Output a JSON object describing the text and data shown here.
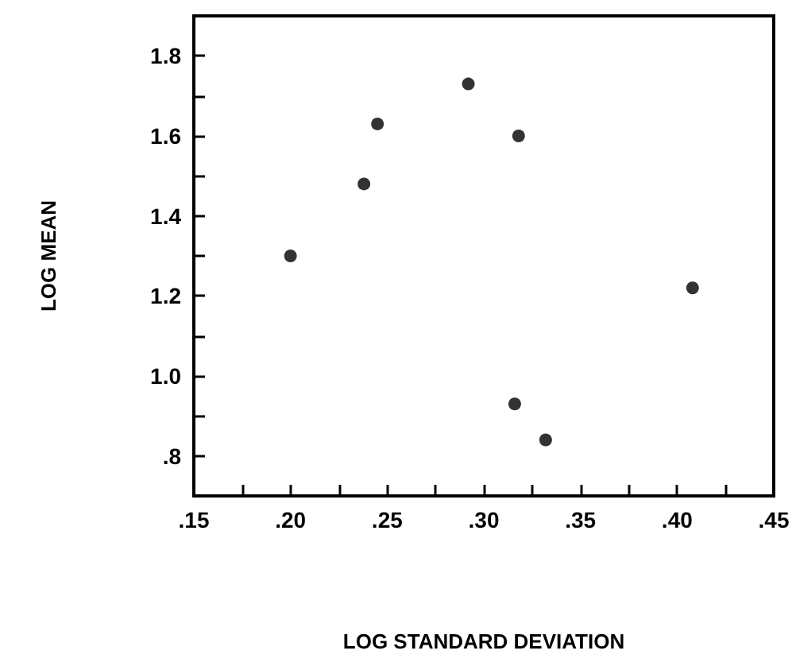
{
  "chart_data": {
    "type": "scatter",
    "xlabel": "LOG STANDARD DEVIATION",
    "ylabel": "LOG MEAN",
    "x": [
      0.2,
      0.238,
      0.245,
      0.292,
      0.318,
      0.316,
      0.332,
      0.408
    ],
    "values": [
      1.3,
      1.48,
      1.63,
      1.73,
      1.6,
      0.93,
      0.84,
      1.22
    ],
    "color": "#000000",
    "marker": "circle",
    "grid": false,
    "xlim": [
      0.15,
      0.45
    ],
    "ylim": [
      0.7,
      1.9
    ],
    "xticks": [
      {
        "value": 0.15,
        "label": ".15"
      },
      {
        "value": 0.175,
        "label": null
      },
      {
        "value": 0.2,
        "label": ".20"
      },
      {
        "value": 0.225,
        "label": null
      },
      {
        "value": 0.25,
        "label": ".25"
      },
      {
        "value": 0.275,
        "label": null
      },
      {
        "value": 0.3,
        "label": ".30"
      },
      {
        "value": 0.325,
        "label": null
      },
      {
        "value": 0.35,
        "label": ".35"
      },
      {
        "value": 0.375,
        "label": null
      },
      {
        "value": 0.4,
        "label": ".40"
      },
      {
        "value": 0.425,
        "label": null
      },
      {
        "value": 0.45,
        "label": ".45"
      }
    ],
    "yticks": [
      {
        "value": 0.8,
        "label": ".8"
      },
      {
        "value": 0.9,
        "label": null
      },
      {
        "value": 1.0,
        "label": "1.0"
      },
      {
        "value": 1.1,
        "label": null
      },
      {
        "value": 1.2,
        "label": "1.2"
      },
      {
        "value": 1.3,
        "label": null
      },
      {
        "value": 1.4,
        "label": "1.4"
      },
      {
        "value": 1.5,
        "label": null
      },
      {
        "value": 1.6,
        "label": "1.6"
      },
      {
        "value": 1.7,
        "label": null
      },
      {
        "value": 1.8,
        "label": "1.8"
      }
    ]
  }
}
